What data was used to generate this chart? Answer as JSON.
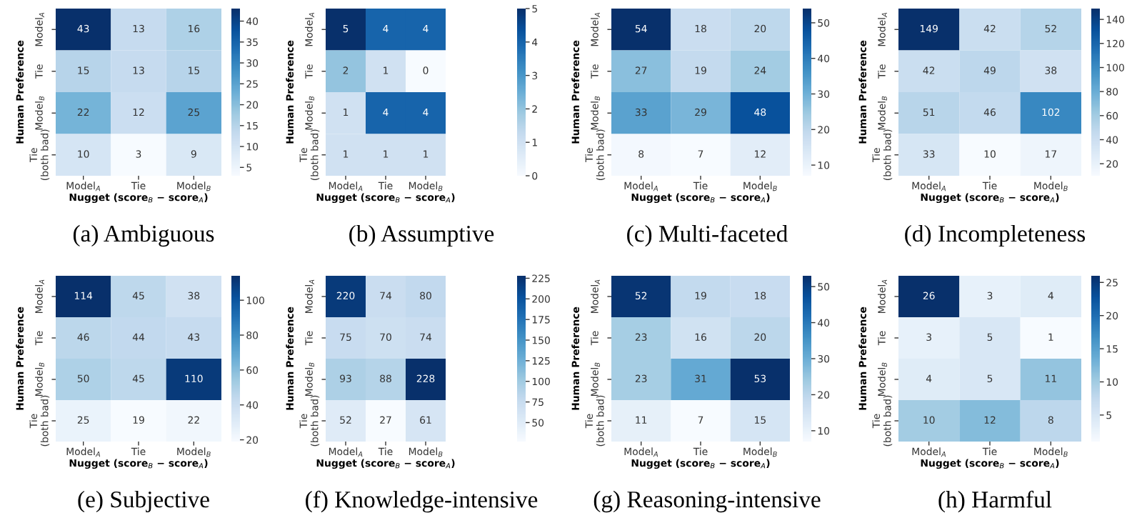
{
  "chart_data": [
    {
      "type": "heatmap",
      "title": "(a) Ambiguous",
      "xlabel": "Nugget (score$_{B}$ − score$_{A}$)",
      "ylabel": "Human Preference",
      "categories": [
        "Model$_{A}$",
        "Tie",
        "Model$_{B}$"
      ],
      "y_categories": [
        "Model$_{A}$",
        "Tie",
        "Model$_{B}$",
        "Tie\n(both bad)"
      ],
      "cells": [
        [
          43,
          13,
          16
        ],
        [
          15,
          13,
          15
        ],
        [
          22,
          12,
          25
        ],
        [
          10,
          3,
          9
        ]
      ],
      "clim": [
        3,
        43
      ],
      "cticks": [
        5,
        10,
        15,
        20,
        25,
        30,
        35,
        40
      ],
      "data_labels": true
    },
    {
      "type": "heatmap",
      "title": "(b) Assumptive",
      "xlabel": "Nugget (score$_{B}$ − score$_{A}$)",
      "ylabel": "Human Preference",
      "categories": [
        "Model$_{A}$",
        "Tie",
        "Model$_{B}$"
      ],
      "y_categories": [
        "Model$_{A}$",
        "Tie",
        "Model$_{B}$",
        "Tie\n(both bad)"
      ],
      "cells": [
        [
          5,
          4,
          4
        ],
        [
          2,
          1,
          0
        ],
        [
          1,
          4,
          4
        ],
        [
          1,
          1,
          1
        ]
      ],
      "clim": [
        0,
        5
      ],
      "cticks": [
        0,
        1,
        2,
        3,
        4,
        5
      ],
      "data_labels": true
    },
    {
      "type": "heatmap",
      "title": "(c) Multi-faceted",
      "xlabel": "Nugget (score$_{B}$ − score$_{A}$)",
      "ylabel": "Human Preference",
      "categories": [
        "Model$_{A}$",
        "Tie",
        "Model$_{B}$"
      ],
      "y_categories": [
        "Model$_{A}$",
        "Tie",
        "Model$_{B}$",
        "Tie\n(both bad)"
      ],
      "cells": [
        [
          54,
          18,
          20
        ],
        [
          27,
          19,
          24
        ],
        [
          33,
          29,
          48
        ],
        [
          8,
          7,
          12
        ]
      ],
      "clim": [
        7,
        54
      ],
      "cticks": [
        10,
        20,
        30,
        40,
        50
      ],
      "data_labels": true
    },
    {
      "type": "heatmap",
      "title": "(d) Incompleteness",
      "xlabel": "Nugget (score$_{B}$ − score$_{A}$)",
      "ylabel": "Human Preference",
      "categories": [
        "Model$_{A}$",
        "Tie",
        "Model$_{B}$"
      ],
      "y_categories": [
        "Model$_{A}$",
        "Tie",
        "Model$_{B}$",
        "Tie\n(both bad)"
      ],
      "cells": [
        [
          149,
          42,
          52
        ],
        [
          42,
          49,
          38
        ],
        [
          51,
          46,
          102
        ],
        [
          33,
          10,
          17
        ]
      ],
      "clim": [
        10,
        149
      ],
      "cticks": [
        20,
        40,
        60,
        80,
        100,
        120,
        140
      ],
      "data_labels": true
    },
    {
      "type": "heatmap",
      "title": "(e) Subjective",
      "xlabel": "Nugget (score$_{B}$ − score$_{A}$)",
      "ylabel": "Human Preference",
      "categories": [
        "Model$_{A}$",
        "Tie",
        "Model$_{B}$"
      ],
      "y_categories": [
        "Model$_{A}$",
        "Tie",
        "Model$_{B}$",
        "Tie\n(both bad)"
      ],
      "cells": [
        [
          114,
          45,
          38
        ],
        [
          46,
          44,
          43
        ],
        [
          50,
          45,
          110
        ],
        [
          25,
          19,
          22
        ]
      ],
      "clim": [
        19,
        114
      ],
      "cticks": [
        20,
        40,
        60,
        80,
        100
      ],
      "data_labels": true
    },
    {
      "type": "heatmap",
      "title": "(f) Knowledge-intensive",
      "xlabel": "Nugget (score$_{B}$ − score$_{A}$)",
      "ylabel": "Human Preference",
      "categories": [
        "Model$_{A}$",
        "Tie",
        "Model$_{B}$"
      ],
      "y_categories": [
        "Model$_{A}$",
        "Tie",
        "Model$_{B}$",
        "Tie\n(both bad)"
      ],
      "cells": [
        [
          220,
          74,
          80
        ],
        [
          75,
          70,
          74
        ],
        [
          93,
          88,
          228
        ],
        [
          52,
          27,
          61
        ]
      ],
      "clim": [
        27,
        228
      ],
      "cticks": [
        50,
        75,
        100,
        125,
        150,
        175,
        200,
        225
      ],
      "data_labels": true
    },
    {
      "type": "heatmap",
      "title": "(g) Reasoning-intensive",
      "xlabel": "Nugget (score$_{B}$ − score$_{A}$)",
      "ylabel": "Human Preference",
      "categories": [
        "Model$_{A}$",
        "Tie",
        "Model$_{B}$"
      ],
      "y_categories": [
        "Model$_{A}$",
        "Tie",
        "Model$_{B}$",
        "Tie\n(both bad)"
      ],
      "cells": [
        [
          52,
          19,
          18
        ],
        [
          23,
          16,
          20
        ],
        [
          23,
          31,
          53
        ],
        [
          11,
          7,
          15
        ]
      ],
      "clim": [
        7,
        53
      ],
      "cticks": [
        10,
        20,
        30,
        40,
        50
      ],
      "data_labels": true
    },
    {
      "type": "heatmap",
      "title": "(h) Harmful",
      "xlabel": "Nugget (score$_{B}$ − score$_{A}$)",
      "ylabel": "Human Preference",
      "categories": [
        "Model$_{A}$",
        "Tie",
        "Model$_{B}$"
      ],
      "y_categories": [
        "Model$_{A}$",
        "Tie",
        "Model$_{B}$",
        "Tie\n(both bad)"
      ],
      "cells": [
        [
          26,
          3,
          4
        ],
        [
          3,
          5,
          1
        ],
        [
          4,
          5,
          11
        ],
        [
          10,
          12,
          8
        ]
      ],
      "clim": [
        1,
        26
      ],
      "cticks": [
        5,
        10,
        15,
        20,
        25
      ],
      "data_labels": true
    }
  ]
}
